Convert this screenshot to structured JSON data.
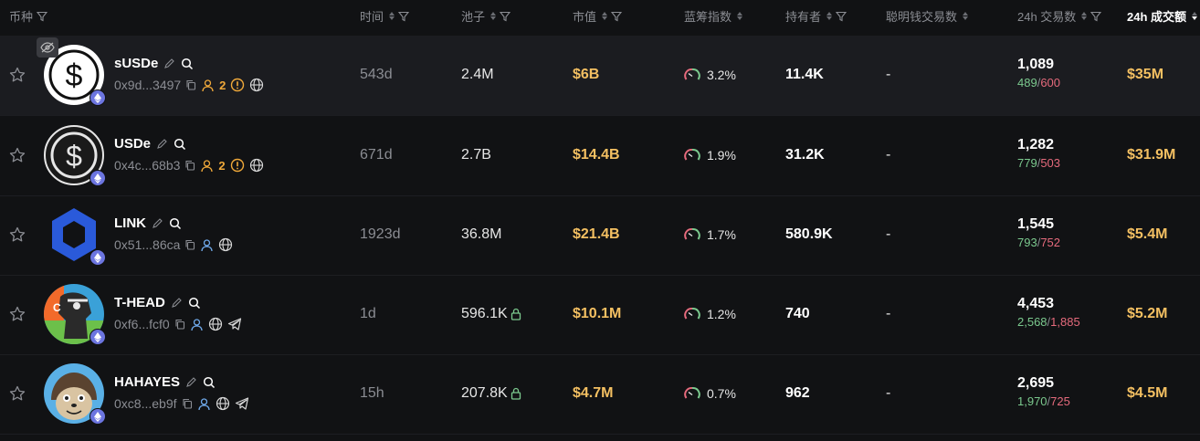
{
  "header": {
    "token": "币种",
    "time": "时间",
    "pool": "池子",
    "mcap": "市值",
    "bluechip": "蓝筹指数",
    "holders": "持有者",
    "smart_txs": "聪明钱交易数",
    "txs_24h": "24h 交易数",
    "vol_24h": "24h 成交额"
  },
  "rows": [
    {
      "symbol": "sUSDe",
      "address": "0x9d...3497",
      "holder_tag": "2",
      "age": "543d",
      "liquidity": "2.4M",
      "mcap": "$6B",
      "bluechip": "3.2%",
      "holders": "11.4K",
      "smart": "-",
      "txs_total": "1,089",
      "buys": "489",
      "sells": "600",
      "volume": "$35M"
    },
    {
      "symbol": "USDe",
      "address": "0x4c...68b3",
      "holder_tag": "2",
      "age": "671d",
      "liquidity": "2.7B",
      "mcap": "$14.4B",
      "bluechip": "1.9%",
      "holders": "31.2K",
      "smart": "-",
      "txs_total": "1,282",
      "buys": "779",
      "sells": "503",
      "volume": "$31.9M"
    },
    {
      "symbol": "LINK",
      "address": "0x51...86ca",
      "age": "1923d",
      "liquidity": "36.8M",
      "mcap": "$21.4B",
      "bluechip": "1.7%",
      "holders": "580.9K",
      "smart": "-",
      "txs_total": "1,545",
      "buys": "793",
      "sells": "752",
      "volume": "$5.4M"
    },
    {
      "symbol": "T-HEAD",
      "address": "0xf6...fcf0",
      "age": "1d",
      "liquidity": "596.1K",
      "mcap": "$10.1M",
      "bluechip": "1.2%",
      "holders": "740",
      "smart": "-",
      "txs_total": "4,453",
      "buys": "2,568",
      "sells": "1,885",
      "volume": "$5.2M"
    },
    {
      "symbol": "HAHAYES",
      "address": "0xc8...eb9f",
      "age": "15h",
      "liquidity": "207.8K",
      "mcap": "$4.7M",
      "bluechip": "0.7%",
      "holders": "962",
      "smart": "-",
      "txs_total": "2,695",
      "buys": "1,970",
      "sells": "725",
      "volume": "$4.5M"
    }
  ],
  "colors": {
    "background": "#111214",
    "highlight_row": "#1b1c20",
    "mcap": "#f4c062",
    "buys": "#7bc98e",
    "sells": "#e56a7c",
    "chain": "#6c75e0"
  }
}
